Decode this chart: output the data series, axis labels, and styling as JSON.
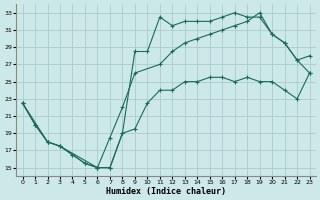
{
  "xlabel": "Humidex (Indice chaleur)",
  "bg_color": "#cce8e8",
  "grid_color": "#aacccc",
  "line_color": "#1a6b5a",
  "xlim": [
    -0.5,
    23.5
  ],
  "ylim": [
    14,
    34
  ],
  "xticks": [
    0,
    1,
    2,
    3,
    4,
    5,
    6,
    7,
    8,
    9,
    10,
    11,
    12,
    13,
    14,
    15,
    16,
    17,
    18,
    19,
    20,
    21,
    22,
    23
  ],
  "yticks": [
    15,
    17,
    19,
    21,
    23,
    25,
    27,
    29,
    31,
    33
  ],
  "line1_x": [
    0,
    1,
    2,
    3,
    4,
    5,
    6,
    7,
    8,
    9,
    10,
    11,
    12,
    13,
    14,
    15,
    16,
    17,
    18,
    19,
    20,
    21,
    22,
    23
  ],
  "line1_y": [
    22.5,
    20.0,
    18.0,
    17.5,
    16.5,
    15.5,
    15.0,
    15.0,
    19.0,
    19.5,
    22.5,
    24.0,
    24.0,
    25.0,
    25.0,
    25.5,
    25.5,
    25.0,
    25.5,
    25.0,
    25.0,
    24.0,
    23.0,
    26.0
  ],
  "line2_x": [
    0,
    1,
    2,
    3,
    4,
    5,
    6,
    7,
    8,
    9,
    10,
    11,
    12,
    13,
    14,
    15,
    16,
    17,
    18,
    19,
    20,
    21,
    22,
    23
  ],
  "line2_y": [
    22.5,
    20.0,
    18.0,
    17.5,
    16.5,
    15.5,
    15.0,
    15.0,
    19.0,
    28.5,
    28.5,
    32.5,
    31.5,
    32.0,
    32.0,
    32.0,
    32.5,
    33.0,
    32.5,
    32.5,
    30.5,
    29.5,
    27.5,
    28.0
  ],
  "line3_x": [
    0,
    2,
    3,
    6,
    7,
    8,
    9,
    11,
    12,
    13,
    14,
    15,
    16,
    17,
    18,
    19,
    20,
    21,
    22,
    23
  ],
  "line3_y": [
    22.5,
    18.0,
    17.5,
    15.0,
    18.5,
    22.0,
    26.0,
    27.0,
    28.5,
    29.5,
    30.0,
    30.5,
    31.0,
    31.5,
    32.0,
    33.0,
    30.5,
    29.5,
    27.5,
    26.0
  ]
}
